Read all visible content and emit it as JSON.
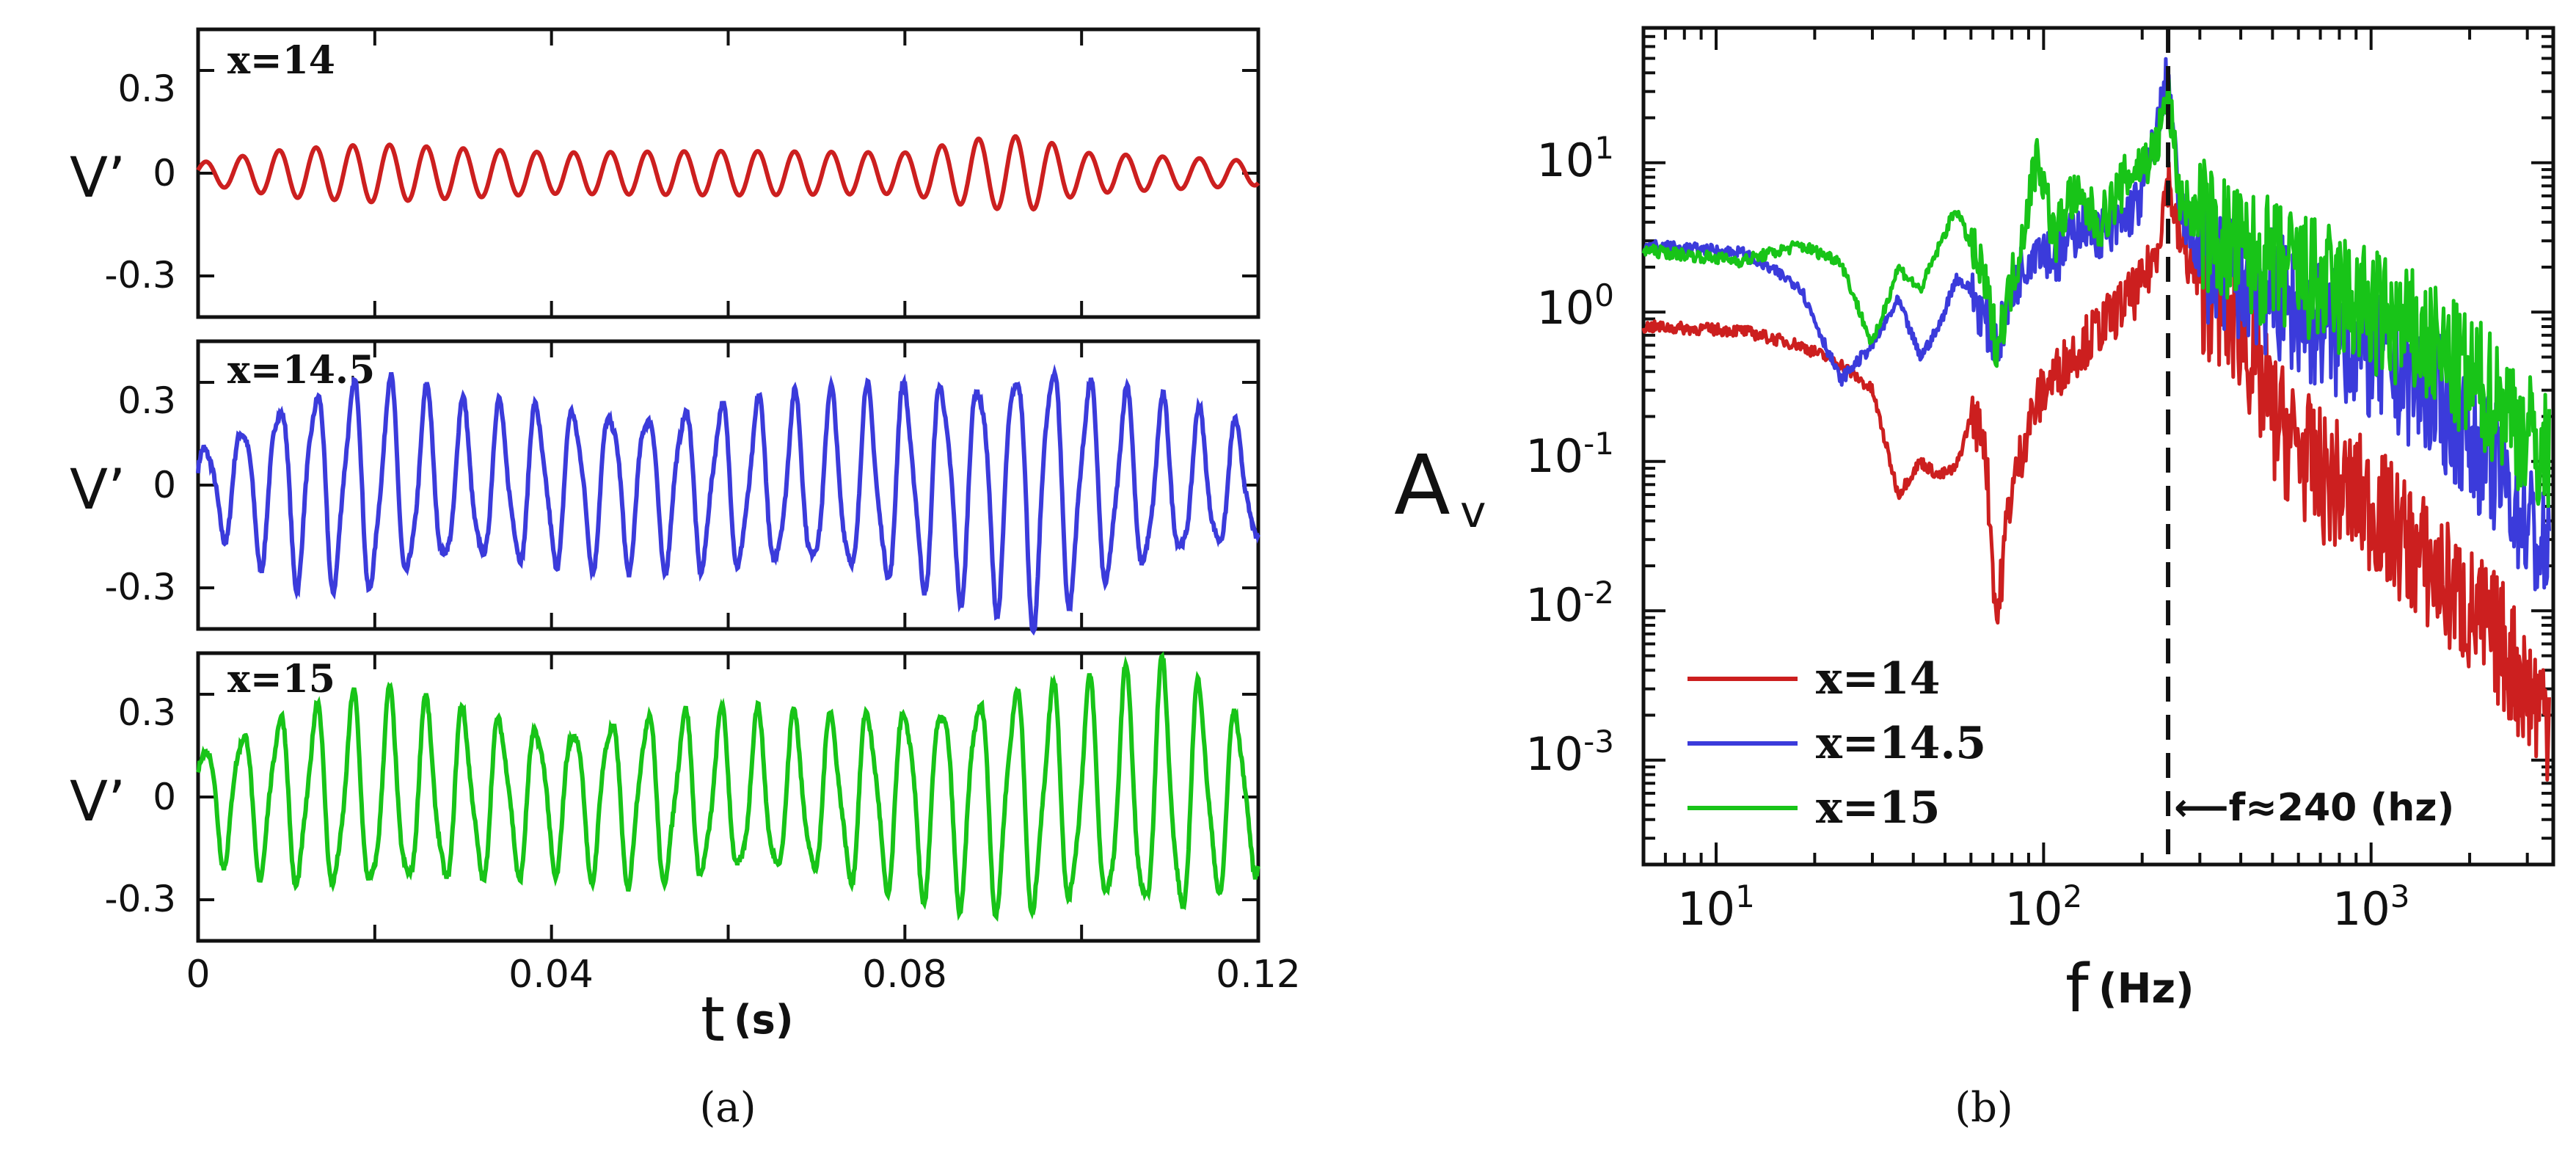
{
  "chart_data": [
    {
      "type": "line",
      "panel_label": "(a)",
      "xlabel": "t",
      "xlabel_unit": "(s)",
      "xlim": [
        0,
        0.12
      ],
      "x_ticks": [
        "0",
        "0.04",
        "0.08",
        "0.12"
      ],
      "subplots": [
        {
          "label": "x=14",
          "ylabel": "V’",
          "ylim": [
            -0.42,
            0.42
          ],
          "y_ticks": [
            "0.3",
            "0",
            "-0.3"
          ],
          "color": "#cc1f1f",
          "series": {
            "freq_hz": 240,
            "amplitude": 0.07,
            "envelope": {
              "t": [
                0,
                0.01,
                0.02,
                0.04,
                0.06,
                0.08,
                0.088,
                0.094,
                0.1,
                0.12
              ],
              "amp": [
                0.03,
                0.07,
                0.085,
                0.06,
                0.065,
                0.06,
                0.1,
                0.11,
                0.06,
                0.035
              ]
            }
          }
        },
        {
          "label": "x=14.5",
          "ylabel": "V’",
          "ylim": [
            -0.42,
            0.42
          ],
          "y_ticks": [
            "0.3",
            "0",
            "-0.3"
          ],
          "color": "#3b3bdb",
          "series": {
            "freq_hz": 240,
            "amplitude": 0.24,
            "envelope": {
              "t": [
                0,
                0.004,
                0.01,
                0.02,
                0.03,
                0.05,
                0.07,
                0.09,
                0.095,
                0.1,
                0.11,
                0.12
              ],
              "amp": [
                0.1,
                0.16,
                0.26,
                0.3,
                0.22,
                0.22,
                0.24,
                0.32,
                0.38,
                0.3,
                0.22,
                0.15
              ]
            }
          }
        },
        {
          "label": "x=15",
          "ylabel": "V’",
          "ylim": [
            -0.42,
            0.42
          ],
          "y_ticks": [
            "0.3",
            "0",
            "-0.3"
          ],
          "color": "#18c418",
          "series": {
            "freq_hz": 240,
            "amplitude": 0.22,
            "envelope": {
              "t": [
                0,
                0.01,
                0.02,
                0.04,
                0.05,
                0.07,
                0.094,
                0.1,
                0.11,
                0.12
              ],
              "amp": [
                0.15,
                0.24,
                0.28,
                0.2,
                0.24,
                0.22,
                0.32,
                0.3,
                0.36,
                0.2
              ]
            }
          }
        }
      ]
    },
    {
      "type": "line",
      "panel_label": "(b)",
      "xlabel": "f",
      "xlabel_unit": "(Hz)",
      "ylabel": "A",
      "ylabel_sub": "v",
      "x_scale": "log",
      "y_scale": "log",
      "xlim": [
        6,
        3600
      ],
      "ylim": [
        0.0002,
        80
      ],
      "x_ticks": [
        {
          "base": "10",
          "exp": "1"
        },
        {
          "base": "10",
          "exp": "2"
        },
        {
          "base": "10",
          "exp": "3"
        }
      ],
      "y_ticks": [
        {
          "base": "10",
          "exp": "1"
        },
        {
          "base": "10",
          "exp": "0"
        },
        {
          "base": "10",
          "exp": "-1"
        },
        {
          "base": "10",
          "exp": "-2"
        },
        {
          "base": "10",
          "exp": "-3"
        }
      ],
      "vline": {
        "x": 240
      },
      "annotation": "⟵f≈240 (hz)",
      "legend_position": "bottom-left",
      "series": [
        {
          "name": "x=14",
          "color": "#cc1f1f",
          "anchors": {
            "f": [
              6,
              12,
              18,
              24,
              30,
              36,
              42,
              48,
              54,
              60,
              66,
              72,
              78,
              90,
              100,
              120,
              150,
              180,
              200,
              220,
              240,
              260,
              300,
              400,
              500,
              700,
              1000,
              1500,
              2000,
              2500,
              3000,
              3500
            ],
            "a": [
              0.8,
              0.75,
              0.6,
              0.45,
              0.3,
              0.06,
              0.1,
              0.08,
              0.09,
              0.2,
              0.15,
              0.008,
              0.05,
              0.18,
              0.3,
              0.5,
              0.8,
              1.2,
              1.5,
              2.5,
              8,
              3,
              1.5,
              0.8,
              0.2,
              0.08,
              0.05,
              0.02,
              0.01,
              0.006,
              0.003,
              0.002
            ]
          }
        },
        {
          "name": "x=14.5",
          "color": "#3b3bdb",
          "anchors": {
            "f": [
              6,
              12,
              18,
              24,
              30,
              36,
              42,
              48,
              54,
              60,
              72,
              84,
              96,
              110,
              130,
              160,
              200,
              220,
              240,
              260,
              300,
              400,
              600,
              1000,
              1500,
              2000,
              2500,
              3000,
              3500
            ],
            "a": [
              2.8,
              2.5,
              1.5,
              0.35,
              0.6,
              1.2,
              0.5,
              0.8,
              1.7,
              1.4,
              0.6,
              1.8,
              3,
              2.2,
              4,
              3.2,
              6,
              15,
              40,
              5,
              2.5,
              1.8,
              1,
              0.5,
              0.3,
              0.15,
              0.08,
              0.04,
              0.02
            ]
          }
        },
        {
          "name": "x=15",
          "color": "#18c418",
          "anchors": {
            "f": [
              6,
              12,
              18,
              24,
              30,
              36,
              42,
              54,
              66,
              72,
              84,
              96,
              108,
              120,
              150,
              180,
              200,
              220,
              240,
              260,
              300,
              400,
              600,
              1000,
              1500,
              2000,
              2500,
              3000,
              3500
            ],
            "a": [
              2.6,
              2.2,
              2.8,
              2.2,
              0.6,
              2,
              1.4,
              5,
              1.6,
              0.6,
              2.5,
              12,
              3,
              6,
              4,
              8,
              10,
              12,
              30,
              6,
              4,
              2.5,
              1.8,
              1,
              0.6,
              0.35,
              0.25,
              0.15,
              0.1
            ]
          }
        }
      ]
    }
  ]
}
